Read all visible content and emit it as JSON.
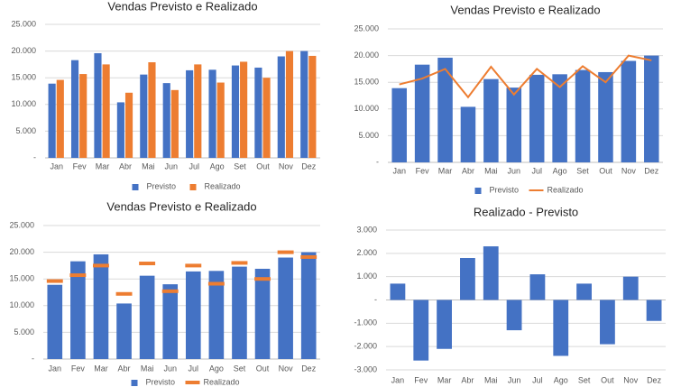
{
  "chart_data": [
    {
      "type": "bar",
      "title": "Vendas Previsto e Realizado",
      "categories": [
        "Jan",
        "Fev",
        "Mar",
        "Abr",
        "Mai",
        "Jun",
        "Jul",
        "Ago",
        "Set",
        "Out",
        "Nov",
        "Dez"
      ],
      "series": [
        {
          "name": "Previsto",
          "color": "#4472c4",
          "style": "bar",
          "values": [
            13900,
            18300,
            19600,
            10400,
            15600,
            14000,
            16400,
            16500,
            17300,
            16900,
            19000,
            20000
          ]
        },
        {
          "name": "Realizado",
          "color": "#ed7d31",
          "style": "bar",
          "values": [
            14600,
            15700,
            17500,
            12200,
            17900,
            12700,
            17500,
            14100,
            18000,
            15000,
            20000,
            19100
          ]
        }
      ],
      "ylim": [
        0,
        25000
      ],
      "yticks": [
        {
          "value": 0,
          "label": "-"
        },
        {
          "value": 5000,
          "label": "5.000"
        },
        {
          "value": 10000,
          "label": "10.000"
        },
        {
          "value": 15000,
          "label": "15.000"
        },
        {
          "value": 20000,
          "label": "20.000"
        },
        {
          "value": 25000,
          "label": "25.000"
        }
      ],
      "grid": true,
      "legend": "bottom"
    },
    {
      "type": "combo",
      "title": "Vendas Previsto e Realizado",
      "categories": [
        "Jan",
        "Fev",
        "Mar",
        "Abr",
        "Mai",
        "Jun",
        "Jul",
        "Ago",
        "Set",
        "Out",
        "Nov",
        "Dez"
      ],
      "series": [
        {
          "name": "Previsto",
          "color": "#4472c4",
          "style": "bar",
          "values": [
            13900,
            18300,
            19600,
            10400,
            15600,
            14000,
            16400,
            16500,
            17300,
            16900,
            19000,
            20000
          ]
        },
        {
          "name": "Realizado",
          "color": "#ed7d31",
          "style": "line",
          "values": [
            14600,
            15700,
            17500,
            12200,
            17900,
            12700,
            17500,
            14100,
            18000,
            15000,
            20000,
            19100
          ]
        }
      ],
      "ylim": [
        0,
        25000
      ],
      "yticks": [
        {
          "value": 0,
          "label": "-"
        },
        {
          "value": 5000,
          "label": "5.000"
        },
        {
          "value": 10000,
          "label": "10.000"
        },
        {
          "value": 15000,
          "label": "15.000"
        },
        {
          "value": 20000,
          "label": "20.000"
        },
        {
          "value": 25000,
          "label": "25.000"
        }
      ],
      "grid": true,
      "legend": "bottom"
    },
    {
      "type": "combo",
      "title": "Vendas Previsto e Realizado",
      "categories": [
        "Jan",
        "Fev",
        "Mar",
        "Abr",
        "Mai",
        "Jun",
        "Jul",
        "Ago",
        "Set",
        "Out",
        "Nov",
        "Dez"
      ],
      "series": [
        {
          "name": "Previsto",
          "color": "#4472c4",
          "style": "bar",
          "values": [
            13900,
            18300,
            19600,
            10400,
            15600,
            14000,
            16400,
            16500,
            17300,
            16900,
            19000,
            20000
          ]
        },
        {
          "name": "Realizado",
          "color": "#ed7d31",
          "style": "marker",
          "values": [
            14600,
            15700,
            17500,
            12200,
            17900,
            12700,
            17500,
            14100,
            18000,
            15000,
            20000,
            19100
          ]
        }
      ],
      "ylim": [
        0,
        25000
      ],
      "yticks": [
        {
          "value": 0,
          "label": "-"
        },
        {
          "value": 5000,
          "label": "5.000"
        },
        {
          "value": 10000,
          "label": "10.000"
        },
        {
          "value": 15000,
          "label": "15.000"
        },
        {
          "value": 20000,
          "label": "20.000"
        },
        {
          "value": 25000,
          "label": "25.000"
        }
      ],
      "grid": true,
      "legend": "bottom"
    },
    {
      "type": "bar",
      "title": "Realizado - Previsto",
      "categories": [
        "Jan",
        "Fev",
        "Mar",
        "Abr",
        "Mai",
        "Jun",
        "Jul",
        "Ago",
        "Set",
        "Out",
        "Nov",
        "Dez"
      ],
      "values": [
        700,
        -2600,
        -2100,
        1800,
        2300,
        -1300,
        1100,
        -2400,
        700,
        -1900,
        1000,
        -900
      ],
      "color": "#4472c4",
      "ylim": [
        -3000,
        3000
      ],
      "yticks": [
        {
          "value": -3000,
          "label": "-3.000"
        },
        {
          "value": -2000,
          "label": "-2.000"
        },
        {
          "value": -1000,
          "label": "-1.000"
        },
        {
          "value": 0,
          "label": "-"
        },
        {
          "value": 1000,
          "label": "1.000"
        },
        {
          "value": 2000,
          "label": "2.000"
        },
        {
          "value": 3000,
          "label": "3.000"
        }
      ],
      "grid": true
    }
  ]
}
